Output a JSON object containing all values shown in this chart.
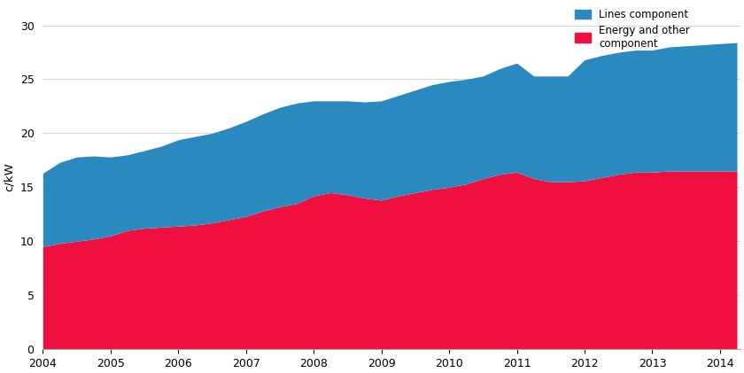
{
  "years": [
    2004.0,
    2004.25,
    2004.5,
    2004.75,
    2005.0,
    2005.25,
    2005.5,
    2005.75,
    2006.0,
    2006.25,
    2006.5,
    2006.75,
    2007.0,
    2007.25,
    2007.5,
    2007.75,
    2008.0,
    2008.25,
    2008.5,
    2008.75,
    2009.0,
    2009.25,
    2009.5,
    2009.75,
    2010.0,
    2010.25,
    2010.5,
    2010.75,
    2011.0,
    2011.25,
    2011.5,
    2011.75,
    2012.0,
    2012.25,
    2012.5,
    2012.75,
    2013.0,
    2013.25,
    2013.5,
    2013.75,
    2014.0,
    2014.25
  ],
  "energy": [
    9.5,
    9.8,
    10.0,
    10.2,
    10.5,
    11.0,
    11.2,
    11.3,
    11.4,
    11.5,
    11.7,
    12.0,
    12.3,
    12.8,
    13.2,
    13.5,
    14.2,
    14.5,
    14.3,
    14.0,
    13.8,
    14.2,
    14.5,
    14.8,
    15.0,
    15.3,
    15.8,
    16.2,
    16.4,
    15.8,
    15.5,
    15.5,
    15.6,
    15.9,
    16.2,
    16.4,
    16.4,
    16.5,
    16.5,
    16.5,
    16.5,
    16.5
  ],
  "lines": [
    6.8,
    7.5,
    7.8,
    7.7,
    7.3,
    7.0,
    7.2,
    7.5,
    8.0,
    8.2,
    8.3,
    8.5,
    8.8,
    9.0,
    9.2,
    9.3,
    8.8,
    8.5,
    8.7,
    8.9,
    9.2,
    9.3,
    9.5,
    9.7,
    9.8,
    9.7,
    9.5,
    9.8,
    10.1,
    9.5,
    9.8,
    9.8,
    11.2,
    11.3,
    11.3,
    11.3,
    11.3,
    11.5,
    11.6,
    11.7,
    11.8,
    11.9
  ],
  "energy_color": "#f01040",
  "lines_color": "#2a8abf",
  "ylim": [
    0,
    32
  ],
  "yticks": [
    0,
    5,
    10,
    15,
    20,
    25,
    30
  ],
  "ylabel": "c/kW",
  "legend_lines": "Lines component",
  "legend_energy": "Energy and other\ncomponent",
  "plot_bg": "#ffffff",
  "fig_bg": "none",
  "grid_color": "#cccccc",
  "xticks": [
    2004,
    2005,
    2006,
    2007,
    2008,
    2009,
    2010,
    2011,
    2012,
    2013,
    2014
  ]
}
